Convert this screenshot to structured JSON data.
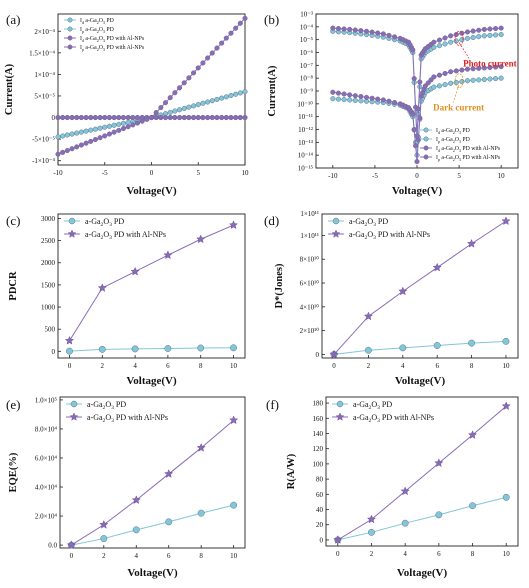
{
  "colors": {
    "blue": "#7ec8d8",
    "purple": "#8a6bb8",
    "red": "#e02020",
    "orange": "#e09020"
  },
  "chart_data": [
    {
      "id": "a",
      "label": "(a)",
      "type": "line",
      "xlabel": "Voltage(V)",
      "ylabel": "Current(A)",
      "xlim": [
        -10,
        10
      ],
      "ylim": [
        -0.00011,
        0.00024
      ],
      "xticks": [
        -10,
        -5,
        0,
        5,
        10
      ],
      "xtick_labels": [
        "-10",
        "-5",
        "0",
        "5",
        "10"
      ],
      "yticks": [
        -0.0001,
        -5e-05,
        0,
        5e-05,
        0.0001,
        0.00015,
        0.0002
      ],
      "ytick_labels": [
        "-1×10⁻⁴",
        "-5×10⁻⁵",
        "0",
        "5×10⁻⁵",
        "1×10⁻⁴",
        "1.5×10⁻⁴",
        "2×10⁻⁴"
      ],
      "legend": [
        "I_d a-Ga2O3 PD",
        "I_p a-Ga2O3 PD",
        "I_d a-Ga2O3 PD with Al-NPs",
        "I_p a-Ga2O3 PD with Al-NPs"
      ],
      "legend_placement": "top-left",
      "series": [
        {
          "name": "I_d a-Ga2O3 PD",
          "color": "blue",
          "marker": "circle",
          "x": [
            -10,
            -8,
            -6,
            -4,
            -2,
            0,
            2,
            4,
            6,
            8,
            10
          ],
          "y": [
            0,
            0,
            0,
            0,
            0,
            0,
            0,
            0,
            0,
            0,
            0
          ]
        },
        {
          "name": "I_p a-Ga2O3 PD",
          "color": "blue",
          "marker": "circle",
          "x": [
            -10,
            -8,
            -6,
            -4,
            -2,
            0,
            2,
            4,
            6,
            8,
            10
          ],
          "y": [
            -4.5e-05,
            -3.6e-05,
            -2.7e-05,
            -1.8e-05,
            -9e-06,
            0,
            1.2e-05,
            2.4e-05,
            3.6e-05,
            4.8e-05,
            6e-05
          ]
        },
        {
          "name": "I_d a-Ga2O3 PD with Al-NPs",
          "color": "purple",
          "marker": "circle",
          "x": [
            -10,
            -8,
            -6,
            -4,
            -2,
            0,
            2,
            4,
            6,
            8,
            10
          ],
          "y": [
            0,
            0,
            0,
            0,
            0,
            0,
            0,
            0,
            0,
            0,
            0
          ]
        },
        {
          "name": "I_p a-Ga2O3 PD with Al-NPs",
          "color": "purple",
          "marker": "circle",
          "x": [
            -10,
            -8,
            -6,
            -4,
            -2,
            0,
            2,
            4,
            6,
            8,
            10
          ],
          "y": [
            -8.5e-05,
            -6.8e-05,
            -5.1e-05,
            -3.4e-05,
            -1.7e-05,
            0,
            4.6e-05,
            9.2e-05,
            0.000138,
            0.000184,
            0.00023
          ]
        }
      ]
    },
    {
      "id": "b",
      "label": "(b)",
      "type": "line",
      "xlabel": "Voltage(V)",
      "ylabel": "Current(A)",
      "yscale": "log",
      "xlim": [
        -12,
        12
      ],
      "ylim_log10": [
        -15,
        -3
      ],
      "xticks": [
        -10,
        -5,
        0,
        5,
        10
      ],
      "xtick_labels": [
        "-10",
        "-5",
        "0",
        "5",
        "10"
      ],
      "yticks_log10": [
        -15,
        -14,
        -13,
        -12,
        -11,
        -10,
        -9,
        -8,
        -7,
        -6,
        -5,
        -4,
        -3
      ],
      "ytick_labels": [
        "10⁻¹⁵",
        "10⁻¹⁴",
        "10⁻¹³",
        "10⁻¹²",
        "10⁻¹¹",
        "10⁻¹⁰",
        "10⁻⁹",
        "10⁻⁸",
        "10⁻⁷",
        "10⁻⁶",
        "10⁻⁵",
        "10⁻⁴",
        "10⁻³"
      ],
      "legend": [
        "I_d a-Ga2O3 PD",
        "I_p a-Ga2O3 PD",
        "I_d a-Ga2O3 PD with Al-NPs",
        "I_p a-Ga2O3 PD with Al-NPs"
      ],
      "legend_placement": "bottom-right",
      "annotations": [
        "Photo current",
        "Dark current"
      ],
      "series": [
        {
          "name": "I_d a-Ga2O3 PD",
          "color": "blue",
          "marker": "circle",
          "x": [
            -10,
            -8,
            -6,
            -4,
            -2,
            -1,
            -0.5,
            0,
            0.5,
            1,
            2,
            4,
            6,
            8,
            10
          ],
          "log10_y": [
            -9.6,
            -9.7,
            -9.8,
            -9.9,
            -10.1,
            -10.4,
            -11,
            -14,
            -9.8,
            -9.1,
            -8.7,
            -8.4,
            -8.2,
            -8.1,
            -8.0
          ]
        },
        {
          "name": "I_p a-Ga2O3 PD",
          "color": "blue",
          "marker": "circle",
          "x": [
            -10,
            -8,
            -6,
            -4,
            -2,
            -1,
            -0.5,
            0,
            0.5,
            1,
            2,
            4,
            6,
            8,
            10
          ],
          "log10_y": [
            -4.35,
            -4.45,
            -4.6,
            -4.8,
            -5.1,
            -5.4,
            -6,
            -13,
            -6.5,
            -6,
            -5.6,
            -5.2,
            -4.9,
            -4.7,
            -4.6
          ]
        },
        {
          "name": "I_d a-Ga2O3 PD with Al-NPs",
          "color": "purple",
          "marker": "circle",
          "x": [
            -10,
            -8,
            -6,
            -4,
            -2,
            -1,
            -0.5,
            0,
            0.5,
            1,
            2,
            4,
            6,
            8,
            10
          ],
          "log10_y": [
            -9.1,
            -9.3,
            -9.5,
            -9.7,
            -10,
            -10.3,
            -10.8,
            -14.5,
            -9.4,
            -8.6,
            -7.9,
            -7.5,
            -7.3,
            -7.2,
            -7.1
          ]
        },
        {
          "name": "I_p a-Ga2O3 PD with Al-NPs",
          "color": "purple",
          "marker": "circle",
          "x": [
            -10,
            -8,
            -6,
            -4,
            -2,
            -1,
            -0.5,
            0,
            0.5,
            1,
            2,
            4,
            6,
            8,
            10
          ],
          "log10_y": [
            -4.1,
            -4.2,
            -4.35,
            -4.55,
            -4.9,
            -5.2,
            -5.8,
            -12.5,
            -6.2,
            -5.7,
            -5.2,
            -4.7,
            -4.4,
            -4.2,
            -4.1
          ]
        }
      ]
    },
    {
      "id": "c",
      "label": "(c)",
      "type": "line",
      "xlabel": "Voltage(V)",
      "ylabel": "PDCR",
      "xlim": [
        -0.7,
        10.7
      ],
      "ylim": [
        -150,
        3100
      ],
      "xticks": [
        0,
        2,
        4,
        6,
        8,
        10
      ],
      "xtick_labels": [
        "0",
        "2",
        "4",
        "6",
        "8",
        "10"
      ],
      "yticks": [
        0,
        500,
        1000,
        1500,
        2000,
        2500,
        3000
      ],
      "ytick_labels": [
        "0",
        "500",
        "1000",
        "1500",
        "2000",
        "2500",
        "3000"
      ],
      "legend_placement": "top-left",
      "series": [
        {
          "name": "a-Ga2O3 PD",
          "color": "blue",
          "marker": "circle",
          "x": [
            0,
            2,
            4,
            6,
            8,
            10
          ],
          "y": [
            5,
            45,
            55,
            65,
            75,
            80
          ]
        },
        {
          "name": "a-Ga2O3 PD with Al-NPs",
          "color": "purple",
          "marker": "star",
          "x": [
            0,
            2,
            4,
            6,
            8,
            10
          ],
          "y": [
            240,
            1430,
            1800,
            2170,
            2530,
            2850
          ]
        }
      ]
    },
    {
      "id": "d",
      "label": "(d)",
      "type": "line",
      "xlabel": "Voltage(V)",
      "ylabel": "D*(Jones)",
      "xlim": [
        -0.7,
        10.7
      ],
      "ylim": [
        -0.3,
        11.8
      ],
      "xticks": [
        0,
        2,
        4,
        6,
        8,
        10
      ],
      "xtick_labels": [
        "0",
        "2",
        "4",
        "6",
        "8",
        "10"
      ],
      "yticks": [
        0,
        2,
        4,
        6,
        8,
        10
      ],
      "ytick_labels": [
        "0",
        "2×10¹⁰",
        "4×10¹⁰",
        "6×10¹⁰",
        "8×10¹⁰",
        "1×10¹¹"
      ],
      "y_unit_multiplier": "1×10¹¹",
      "legend_placement": "top-left",
      "series": [
        {
          "name": "a-Ga2O3 PD",
          "color": "blue",
          "marker": "circle",
          "x": [
            0,
            2,
            4,
            6,
            8,
            10
          ],
          "y": [
            0,
            0.35,
            0.55,
            0.75,
            0.95,
            1.1
          ]
        },
        {
          "name": "a-Ga2O3 PD with Al-NPs",
          "color": "purple",
          "marker": "star",
          "x": [
            0,
            2,
            4,
            6,
            8,
            10
          ],
          "y": [
            0,
            3.2,
            5.3,
            7.3,
            9.3,
            11.2
          ]
        }
      ]
    },
    {
      "id": "e",
      "label": "(e)",
      "type": "line",
      "xlabel": "Voltage(V)",
      "ylabel": "EQE(%)",
      "xlim": [
        -0.7,
        10.7
      ],
      "ylim": [
        -0.2,
        10.2
      ],
      "xticks": [
        0,
        2,
        4,
        6,
        8,
        10
      ],
      "xtick_labels": [
        "0",
        "2",
        "4",
        "6",
        "8",
        "10"
      ],
      "yticks": [
        0,
        2,
        4,
        6,
        8,
        10
      ],
      "ytick_labels": [
        "0.0",
        "2.0×10⁴",
        "4.0×10⁴",
        "6.0×10⁴",
        "8.0×10⁴",
        "1.0×10⁵"
      ],
      "legend_placement": "top-left",
      "series": [
        {
          "name": "a-Ga2O3 PD",
          "color": "blue",
          "marker": "circle",
          "x": [
            0,
            2,
            4,
            6,
            8,
            10
          ],
          "y": [
            0,
            0.45,
            1.05,
            1.6,
            2.2,
            2.75
          ]
        },
        {
          "name": "a-Ga2O3 PD with Al-NPs",
          "color": "purple",
          "marker": "star",
          "x": [
            0,
            2,
            4,
            6,
            8,
            10
          ],
          "y": [
            0,
            1.4,
            3.1,
            4.9,
            6.7,
            8.6
          ]
        }
      ]
    },
    {
      "id": "f",
      "label": "(f)",
      "type": "line",
      "xlabel": "Voltage(V)",
      "ylabel": "R(A/W)",
      "xlim": [
        -0.7,
        10.7
      ],
      "ylim": [
        -8,
        188
      ],
      "xticks": [
        0,
        2,
        4,
        6,
        8,
        10
      ],
      "xtick_labels": [
        "0",
        "2",
        "4",
        "6",
        "8",
        "10"
      ],
      "yticks": [
        0,
        20,
        40,
        60,
        80,
        100,
        120,
        140,
        160,
        180
      ],
      "ytick_labels": [
        "0",
        "20",
        "40",
        "60",
        "80",
        "100",
        "120",
        "140",
        "160",
        "180"
      ],
      "legend_placement": "top-left",
      "series": [
        {
          "name": "a-Ga2O3 PD",
          "color": "blue",
          "marker": "circle",
          "x": [
            0,
            2,
            4,
            6,
            8,
            10
          ],
          "y": [
            0,
            10,
            22,
            33,
            45,
            56
          ]
        },
        {
          "name": "a-Ga2O3 PD with Al-NPs",
          "color": "purple",
          "marker": "star",
          "x": [
            0,
            2,
            4,
            6,
            8,
            10
          ],
          "y": [
            0,
            27,
            64,
            101,
            138,
            176
          ]
        }
      ]
    }
  ]
}
